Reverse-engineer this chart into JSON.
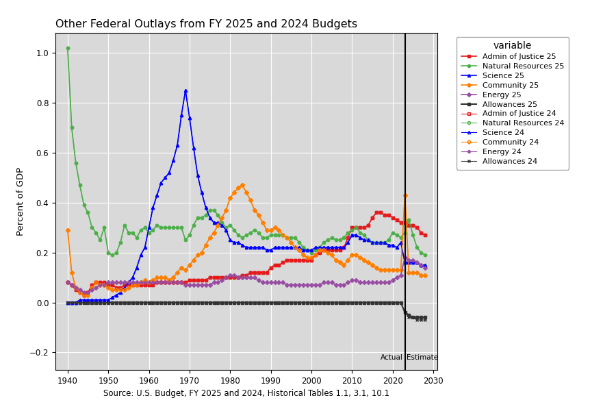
{
  "title": "Other Federal Outlays from FY 2025 and 2024 Budgets",
  "xlabel": "Source: U.S. Budget, FY 2025 and 2024, Historical Tables 1.1, 3.1, 10.1",
  "ylabel": "Percent of GDP",
  "bg_color": "#d9d9d9",
  "vertical_line_x": 2023,
  "actual_label": "Actual",
  "estimate_label": "Estimate",
  "years": [
    1940,
    1941,
    1942,
    1943,
    1944,
    1945,
    1946,
    1947,
    1948,
    1949,
    1950,
    1951,
    1952,
    1953,
    1954,
    1955,
    1956,
    1957,
    1958,
    1959,
    1960,
    1961,
    1962,
    1963,
    1964,
    1965,
    1966,
    1967,
    1968,
    1969,
    1970,
    1971,
    1972,
    1973,
    1974,
    1975,
    1976,
    1977,
    1978,
    1979,
    1980,
    1981,
    1982,
    1983,
    1984,
    1985,
    1986,
    1987,
    1988,
    1989,
    1990,
    1991,
    1992,
    1993,
    1994,
    1995,
    1996,
    1997,
    1998,
    1999,
    2000,
    2001,
    2002,
    2003,
    2004,
    2005,
    2006,
    2007,
    2008,
    2009,
    2010,
    2011,
    2012,
    2013,
    2014,
    2015,
    2016,
    2017,
    2018,
    2019,
    2020,
    2021,
    2022,
    2023,
    2024,
    2025,
    2026,
    2027,
    2028
  ],
  "admin_justice_25": [
    0.08,
    0.07,
    0.05,
    0.04,
    0.03,
    0.04,
    0.07,
    0.08,
    0.08,
    0.08,
    0.07,
    0.07,
    0.06,
    0.06,
    0.07,
    0.07,
    0.07,
    0.07,
    0.07,
    0.07,
    0.07,
    0.07,
    0.08,
    0.08,
    0.08,
    0.08,
    0.08,
    0.08,
    0.08,
    0.08,
    0.09,
    0.09,
    0.09,
    0.09,
    0.09,
    0.1,
    0.1,
    0.1,
    0.1,
    0.1,
    0.1,
    0.1,
    0.1,
    0.11,
    0.11,
    0.12,
    0.12,
    0.12,
    0.12,
    0.12,
    0.14,
    0.15,
    0.15,
    0.16,
    0.17,
    0.17,
    0.17,
    0.17,
    0.17,
    0.17,
    0.17,
    0.19,
    0.2,
    0.21,
    0.21,
    0.21,
    0.21,
    0.21,
    0.22,
    0.26,
    0.3,
    0.3,
    0.3,
    0.3,
    0.31,
    0.34,
    0.36,
    0.36,
    0.35,
    0.35,
    0.34,
    0.33,
    0.32,
    0.32,
    0.31,
    0.31,
    0.3,
    0.28,
    0.27
  ],
  "nat_resources_25": [
    1.02,
    0.7,
    0.56,
    0.47,
    0.39,
    0.36,
    0.3,
    0.28,
    0.25,
    0.3,
    0.2,
    0.19,
    0.2,
    0.24,
    0.31,
    0.28,
    0.28,
    0.26,
    0.29,
    0.3,
    0.28,
    0.29,
    0.31,
    0.3,
    0.3,
    0.3,
    0.3,
    0.3,
    0.3,
    0.25,
    0.27,
    0.31,
    0.34,
    0.34,
    0.35,
    0.37,
    0.37,
    0.35,
    0.32,
    0.3,
    0.31,
    0.29,
    0.27,
    0.26,
    0.27,
    0.28,
    0.29,
    0.28,
    0.26,
    0.26,
    0.27,
    0.27,
    0.27,
    0.27,
    0.26,
    0.26,
    0.26,
    0.24,
    0.22,
    0.21,
    0.2,
    0.21,
    0.22,
    0.24,
    0.25,
    0.26,
    0.25,
    0.25,
    0.26,
    0.28,
    0.29,
    0.3,
    0.28,
    0.27,
    0.25,
    0.24,
    0.24,
    0.24,
    0.24,
    0.25,
    0.28,
    0.27,
    0.26,
    0.28,
    0.33,
    0.27,
    0.22,
    0.2,
    0.19
  ],
  "science_25": [
    0.0,
    0.0,
    0.0,
    0.01,
    0.01,
    0.01,
    0.01,
    0.01,
    0.01,
    0.01,
    0.01,
    0.02,
    0.03,
    0.04,
    0.06,
    0.08,
    0.1,
    0.14,
    0.19,
    0.22,
    0.3,
    0.38,
    0.43,
    0.48,
    0.5,
    0.52,
    0.57,
    0.63,
    0.75,
    0.85,
    0.74,
    0.62,
    0.51,
    0.44,
    0.38,
    0.34,
    0.32,
    0.32,
    0.31,
    0.29,
    0.25,
    0.24,
    0.24,
    0.23,
    0.22,
    0.22,
    0.22,
    0.22,
    0.22,
    0.21,
    0.21,
    0.22,
    0.22,
    0.22,
    0.22,
    0.22,
    0.22,
    0.22,
    0.21,
    0.21,
    0.21,
    0.22,
    0.22,
    0.22,
    0.22,
    0.22,
    0.22,
    0.22,
    0.22,
    0.24,
    0.27,
    0.27,
    0.26,
    0.25,
    0.25,
    0.24,
    0.24,
    0.24,
    0.24,
    0.23,
    0.23,
    0.22,
    0.24,
    0.16,
    0.16,
    0.16,
    0.16,
    0.15,
    0.15
  ],
  "community_25": [
    0.29,
    0.12,
    0.06,
    0.04,
    0.03,
    0.03,
    0.06,
    0.08,
    0.07,
    0.07,
    0.06,
    0.05,
    0.05,
    0.05,
    0.05,
    0.06,
    0.07,
    0.07,
    0.08,
    0.09,
    0.08,
    0.09,
    0.1,
    0.1,
    0.1,
    0.09,
    0.1,
    0.12,
    0.14,
    0.13,
    0.15,
    0.17,
    0.19,
    0.2,
    0.23,
    0.26,
    0.28,
    0.31,
    0.34,
    0.37,
    0.42,
    0.44,
    0.46,
    0.47,
    0.44,
    0.41,
    0.37,
    0.35,
    0.32,
    0.29,
    0.29,
    0.3,
    0.29,
    0.27,
    0.26,
    0.24,
    0.22,
    0.21,
    0.19,
    0.18,
    0.18,
    0.19,
    0.21,
    0.21,
    0.2,
    0.19,
    0.17,
    0.16,
    0.15,
    0.17,
    0.19,
    0.19,
    0.18,
    0.17,
    0.16,
    0.15,
    0.14,
    0.13,
    0.13,
    0.13,
    0.13,
    0.13,
    0.13,
    0.43,
    0.12,
    0.12,
    0.12,
    0.11,
    0.11
  ],
  "energy_25": [
    0.08,
    0.07,
    0.06,
    0.05,
    0.04,
    0.04,
    0.05,
    0.06,
    0.07,
    0.07,
    0.08,
    0.08,
    0.08,
    0.08,
    0.08,
    0.08,
    0.08,
    0.08,
    0.08,
    0.08,
    0.08,
    0.08,
    0.08,
    0.08,
    0.08,
    0.08,
    0.08,
    0.08,
    0.08,
    0.07,
    0.07,
    0.07,
    0.07,
    0.07,
    0.07,
    0.07,
    0.08,
    0.08,
    0.09,
    0.1,
    0.11,
    0.11,
    0.1,
    0.1,
    0.1,
    0.1,
    0.1,
    0.09,
    0.08,
    0.08,
    0.08,
    0.08,
    0.08,
    0.08,
    0.07,
    0.07,
    0.07,
    0.07,
    0.07,
    0.07,
    0.07,
    0.07,
    0.07,
    0.08,
    0.08,
    0.08,
    0.07,
    0.07,
    0.07,
    0.08,
    0.09,
    0.09,
    0.08,
    0.08,
    0.08,
    0.08,
    0.08,
    0.08,
    0.08,
    0.08,
    0.09,
    0.1,
    0.11,
    0.18,
    0.17,
    0.17,
    0.16,
    0.15,
    0.14
  ],
  "allowances_25": [
    0.0,
    0.0,
    0.0,
    0.0,
    0.0,
    0.0,
    0.0,
    0.0,
    0.0,
    0.0,
    0.0,
    0.0,
    0.0,
    0.0,
    0.0,
    0.0,
    0.0,
    0.0,
    0.0,
    0.0,
    0.0,
    0.0,
    0.0,
    0.0,
    0.0,
    0.0,
    0.0,
    0.0,
    0.0,
    0.0,
    0.0,
    0.0,
    0.0,
    0.0,
    0.0,
    0.0,
    0.0,
    0.0,
    0.0,
    0.0,
    0.0,
    0.0,
    0.0,
    0.0,
    0.0,
    0.0,
    0.0,
    0.0,
    0.0,
    0.0,
    0.0,
    0.0,
    0.0,
    0.0,
    0.0,
    0.0,
    0.0,
    0.0,
    0.0,
    0.0,
    0.0,
    0.0,
    0.0,
    0.0,
    0.0,
    0.0,
    0.0,
    0.0,
    0.0,
    0.0,
    0.0,
    0.0,
    0.0,
    0.0,
    0.0,
    0.0,
    0.0,
    0.0,
    0.0,
    0.0,
    0.0,
    0.0,
    0.0,
    -0.04,
    -0.05,
    -0.06,
    -0.06,
    -0.06,
    -0.06
  ],
  "admin_justice_24": [
    0.08,
    0.07,
    0.05,
    0.04,
    0.03,
    0.04,
    0.07,
    0.08,
    0.08,
    0.08,
    0.07,
    0.07,
    0.06,
    0.06,
    0.07,
    0.07,
    0.07,
    0.07,
    0.07,
    0.07,
    0.07,
    0.07,
    0.08,
    0.08,
    0.08,
    0.08,
    0.08,
    0.08,
    0.08,
    0.08,
    0.09,
    0.09,
    0.09,
    0.09,
    0.09,
    0.1,
    0.1,
    0.1,
    0.1,
    0.1,
    0.1,
    0.1,
    0.1,
    0.11,
    0.11,
    0.12,
    0.12,
    0.12,
    0.12,
    0.12,
    0.14,
    0.15,
    0.15,
    0.16,
    0.17,
    0.17,
    0.17,
    0.17,
    0.17,
    0.17,
    0.17,
    0.19,
    0.2,
    0.21,
    0.21,
    0.21,
    0.21,
    0.21,
    0.22,
    0.26,
    0.3,
    0.3,
    0.3,
    0.3,
    0.31,
    0.34,
    0.36,
    0.36,
    0.35,
    0.35,
    0.34,
    0.33,
    0.32,
    0.32,
    0.31,
    0.31,
    0.3,
    0.28,
    0.27
  ],
  "nat_resources_24": [
    1.02,
    0.7,
    0.56,
    0.47,
    0.39,
    0.36,
    0.3,
    0.28,
    0.25,
    0.3,
    0.2,
    0.19,
    0.2,
    0.24,
    0.31,
    0.28,
    0.28,
    0.26,
    0.29,
    0.3,
    0.28,
    0.29,
    0.31,
    0.3,
    0.3,
    0.3,
    0.3,
    0.3,
    0.3,
    0.25,
    0.27,
    0.31,
    0.34,
    0.34,
    0.35,
    0.37,
    0.37,
    0.35,
    0.32,
    0.3,
    0.31,
    0.29,
    0.27,
    0.26,
    0.27,
    0.28,
    0.29,
    0.28,
    0.26,
    0.26,
    0.27,
    0.27,
    0.27,
    0.27,
    0.26,
    0.26,
    0.26,
    0.24,
    0.22,
    0.21,
    0.2,
    0.21,
    0.22,
    0.24,
    0.25,
    0.26,
    0.25,
    0.25,
    0.26,
    0.28,
    0.29,
    0.3,
    0.28,
    0.27,
    0.25,
    0.24,
    0.24,
    0.24,
    0.24,
    0.25,
    0.28,
    0.27,
    0.26,
    0.28,
    0.33,
    0.27,
    0.22,
    0.2,
    0.19
  ],
  "science_24": [
    0.0,
    0.0,
    0.0,
    0.01,
    0.01,
    0.01,
    0.01,
    0.01,
    0.01,
    0.01,
    0.01,
    0.02,
    0.03,
    0.04,
    0.06,
    0.08,
    0.1,
    0.14,
    0.19,
    0.22,
    0.3,
    0.38,
    0.43,
    0.48,
    0.5,
    0.52,
    0.57,
    0.63,
    0.75,
    0.85,
    0.74,
    0.62,
    0.51,
    0.44,
    0.38,
    0.34,
    0.32,
    0.32,
    0.31,
    0.29,
    0.25,
    0.24,
    0.24,
    0.23,
    0.22,
    0.22,
    0.22,
    0.22,
    0.22,
    0.21,
    0.21,
    0.22,
    0.22,
    0.22,
    0.22,
    0.22,
    0.22,
    0.22,
    0.21,
    0.21,
    0.21,
    0.22,
    0.22,
    0.22,
    0.22,
    0.22,
    0.22,
    0.22,
    0.22,
    0.24,
    0.27,
    0.27,
    0.26,
    0.25,
    0.25,
    0.24,
    0.24,
    0.24,
    0.24,
    0.23,
    0.23,
    0.22,
    0.24,
    0.16,
    0.16,
    0.16,
    0.16,
    0.15,
    0.15
  ],
  "community_24": [
    0.29,
    0.12,
    0.06,
    0.04,
    0.03,
    0.03,
    0.06,
    0.08,
    0.07,
    0.07,
    0.06,
    0.05,
    0.05,
    0.05,
    0.05,
    0.06,
    0.07,
    0.07,
    0.08,
    0.09,
    0.08,
    0.09,
    0.1,
    0.1,
    0.1,
    0.09,
    0.1,
    0.12,
    0.14,
    0.13,
    0.15,
    0.17,
    0.19,
    0.2,
    0.23,
    0.26,
    0.28,
    0.31,
    0.34,
    0.37,
    0.42,
    0.44,
    0.46,
    0.47,
    0.44,
    0.41,
    0.37,
    0.35,
    0.32,
    0.29,
    0.29,
    0.3,
    0.29,
    0.27,
    0.26,
    0.24,
    0.22,
    0.21,
    0.19,
    0.18,
    0.18,
    0.19,
    0.21,
    0.21,
    0.2,
    0.19,
    0.17,
    0.16,
    0.15,
    0.17,
    0.19,
    0.19,
    0.18,
    0.17,
    0.16,
    0.15,
    0.14,
    0.13,
    0.13,
    0.13,
    0.13,
    0.13,
    0.13,
    0.43,
    0.12,
    0.12,
    0.12,
    0.11,
    0.11
  ],
  "energy_24": [
    0.08,
    0.07,
    0.06,
    0.05,
    0.04,
    0.04,
    0.05,
    0.06,
    0.07,
    0.07,
    0.08,
    0.08,
    0.08,
    0.08,
    0.08,
    0.08,
    0.08,
    0.08,
    0.08,
    0.08,
    0.08,
    0.08,
    0.08,
    0.08,
    0.08,
    0.08,
    0.08,
    0.08,
    0.08,
    0.07,
    0.07,
    0.07,
    0.07,
    0.07,
    0.07,
    0.07,
    0.08,
    0.08,
    0.09,
    0.1,
    0.11,
    0.11,
    0.1,
    0.1,
    0.1,
    0.1,
    0.1,
    0.09,
    0.08,
    0.08,
    0.08,
    0.08,
    0.08,
    0.08,
    0.07,
    0.07,
    0.07,
    0.07,
    0.07,
    0.07,
    0.07,
    0.07,
    0.07,
    0.08,
    0.08,
    0.08,
    0.07,
    0.07,
    0.07,
    0.08,
    0.09,
    0.09,
    0.08,
    0.08,
    0.08,
    0.08,
    0.08,
    0.08,
    0.08,
    0.08,
    0.09,
    0.1,
    0.11,
    0.18,
    0.17,
    0.17,
    0.16,
    0.15,
    0.14
  ],
  "allowances_24": [
    0.0,
    0.0,
    0.0,
    0.0,
    0.0,
    0.0,
    0.0,
    0.0,
    0.0,
    0.0,
    0.0,
    0.0,
    0.0,
    0.0,
    0.0,
    0.0,
    0.0,
    0.0,
    0.0,
    0.0,
    0.0,
    0.0,
    0.0,
    0.0,
    0.0,
    0.0,
    0.0,
    0.0,
    0.0,
    0.0,
    0.0,
    0.0,
    0.0,
    0.0,
    0.0,
    0.0,
    0.0,
    0.0,
    0.0,
    0.0,
    0.0,
    0.0,
    0.0,
    0.0,
    0.0,
    0.0,
    0.0,
    0.0,
    0.0,
    0.0,
    0.0,
    0.0,
    0.0,
    0.0,
    0.0,
    0.0,
    0.0,
    0.0,
    0.0,
    0.0,
    0.0,
    0.0,
    0.0,
    0.0,
    0.0,
    0.0,
    0.0,
    0.0,
    0.0,
    0.0,
    0.0,
    0.0,
    0.0,
    0.0,
    0.0,
    0.0,
    0.0,
    0.0,
    0.0,
    0.0,
    0.0,
    0.0,
    0.0,
    -0.04,
    -0.06,
    -0.06,
    -0.07,
    -0.07,
    -0.07
  ],
  "series_configs": [
    {
      "key": "admin_justice_25",
      "label": "Admin of Justice 25",
      "color": "#e41a1c",
      "marker": "s",
      "filled": true,
      "lw": 1.2,
      "ms": 3
    },
    {
      "key": "nat_resources_25",
      "label": "Natural Resources 25",
      "color": "#4daf4a",
      "marker": "o",
      "filled": true,
      "lw": 1.2,
      "ms": 3
    },
    {
      "key": "science_25",
      "label": "Science 25",
      "color": "#0000ff",
      "marker": "^",
      "filled": true,
      "lw": 1.2,
      "ms": 3
    },
    {
      "key": "community_25",
      "label": "Community 25",
      "color": "#ff7f00",
      "marker": "D",
      "filled": true,
      "lw": 1.2,
      "ms": 3
    },
    {
      "key": "energy_25",
      "label": "Energy 25",
      "color": "#984ea3",
      "marker": "D",
      "filled": true,
      "lw": 1.2,
      "ms": 3
    },
    {
      "key": "allowances_25",
      "label": "Allowances 25",
      "color": "#333333",
      "marker": "s",
      "filled": true,
      "lw": 1.5,
      "ms": 3
    },
    {
      "key": "admin_justice_24",
      "label": "Admin of Justice 24",
      "color": "#e41a1c",
      "marker": "s",
      "filled": false,
      "lw": 0.8,
      "ms": 3
    },
    {
      "key": "nat_resources_24",
      "label": "Natural Resources 24",
      "color": "#4daf4a",
      "marker": "o",
      "filled": false,
      "lw": 0.8,
      "ms": 3
    },
    {
      "key": "science_24",
      "label": "Science 24",
      "color": "#0000ff",
      "marker": "^",
      "filled": false,
      "lw": 0.8,
      "ms": 3
    },
    {
      "key": "community_24",
      "label": "Community 24",
      "color": "#ff7f00",
      "marker": "D",
      "filled": false,
      "lw": 0.8,
      "ms": 3
    },
    {
      "key": "energy_24",
      "label": "Energy 24",
      "color": "#984ea3",
      "marker": "P",
      "filled": false,
      "lw": 0.8,
      "ms": 3
    },
    {
      "key": "allowances_24",
      "label": "Allowances 24",
      "color": "#333333",
      "marker": "x",
      "filled": false,
      "lw": 0.8,
      "ms": 3
    }
  ],
  "xlim": [
    1937,
    2031
  ],
  "ylim": [
    -0.27,
    1.08
  ],
  "xticks": [
    1940,
    1950,
    1960,
    1970,
    1980,
    1990,
    2000,
    2010,
    2020,
    2030
  ],
  "yticks": [
    -0.2,
    0.0,
    0.2,
    0.4,
    0.6,
    0.8,
    1.0
  ]
}
